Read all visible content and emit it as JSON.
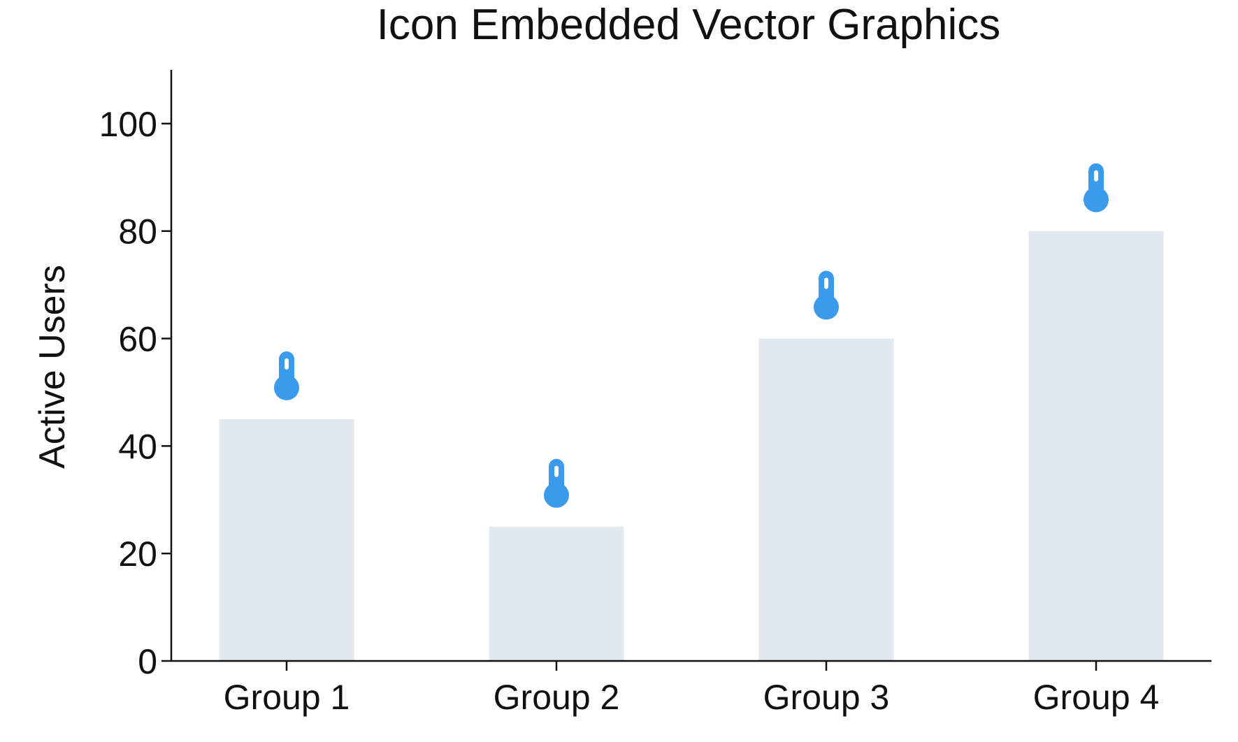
{
  "chart_data": {
    "type": "bar",
    "title": "Icon Embedded Vector Graphics",
    "xlabel": "",
    "ylabel": "Active Users",
    "categories": [
      "Group 1",
      "Group 2",
      "Group 3",
      "Group 4"
    ],
    "values": [
      45,
      25,
      60,
      80
    ],
    "ylim": [
      0,
      110
    ],
    "yticks": [
      "0",
      "20",
      "40",
      "60",
      "80",
      "100"
    ],
    "grid": false,
    "legend": "none",
    "bar_color": "#e1e8f0",
    "icon": "thermometer-icon",
    "icon_color": "#3a9bed"
  }
}
